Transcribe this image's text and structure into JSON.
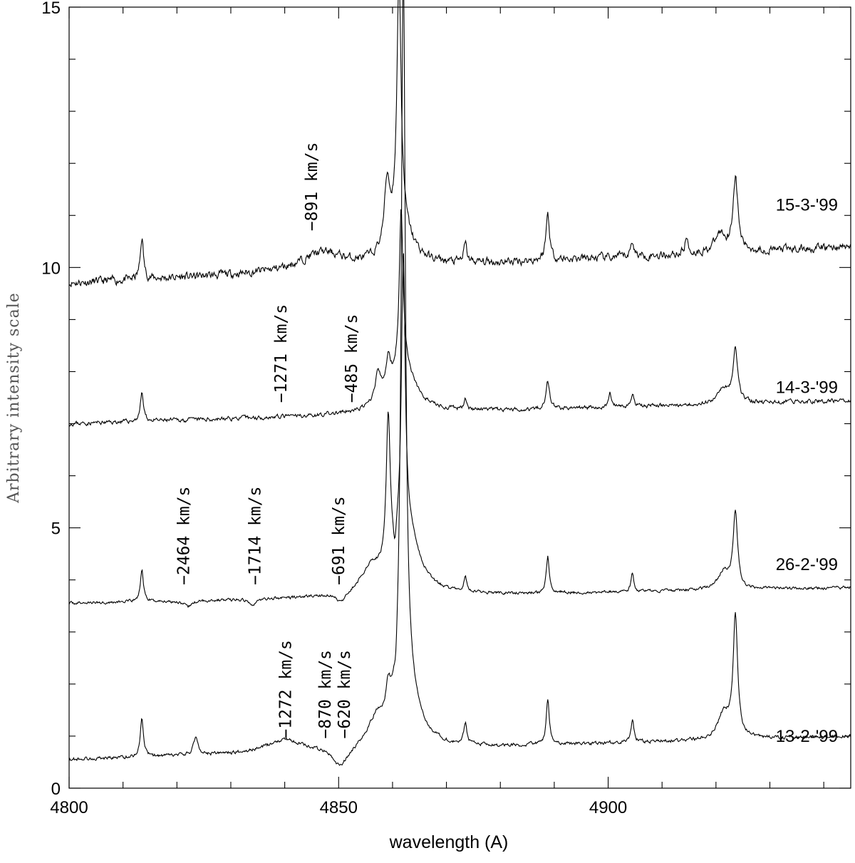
{
  "chart_data": {
    "type": "line",
    "xlabel": "wavelength (A)",
    "ylabel": "Arbitrary intensity scale",
    "xlim": [
      4800,
      4945
    ],
    "ylim": [
      0,
      15
    ],
    "x_major_ticks": [
      4800,
      4850,
      4900
    ],
    "x_tick_labels": [
      "4800",
      "4850",
      "4900"
    ],
    "y_major_ticks": [
      0,
      5,
      10,
      15
    ],
    "y_tick_labels": [
      "0",
      "5",
      "10",
      "15"
    ],
    "grid": false,
    "series": [
      {
        "name": "15-3-'99",
        "baseline_start": 9.7,
        "baseline_end": 10.4,
        "noise": 0.14,
        "seed": 11,
        "features": [
          {
            "center": 4813.5,
            "width": 0.35,
            "height": 0.8
          },
          {
            "center": 4847.0,
            "width": 5.0,
            "height": 0.35
          },
          {
            "center": 4859.0,
            "width": 0.6,
            "height": 1.2
          },
          {
            "center": 4861.2,
            "width": 0.45,
            "height": 4.8
          },
          {
            "center": 4861.4,
            "width": 2.5,
            "height": 0.8
          },
          {
            "center": 4873.5,
            "width": 0.35,
            "height": 0.35
          },
          {
            "center": 4888.8,
            "width": 0.4,
            "height": 0.9
          },
          {
            "center": 4904.5,
            "width": 0.35,
            "height": 0.3
          },
          {
            "center": 4914.5,
            "width": 0.35,
            "height": 0.3
          },
          {
            "center": 4923.6,
            "width": 0.55,
            "height": 1.4
          },
          {
            "center": 4920.8,
            "width": 1.2,
            "height": 0.35
          }
        ]
      },
      {
        "name": "14-3-'99",
        "baseline_start": 7.0,
        "baseline_end": 7.45,
        "noise": 0.07,
        "seed": 23,
        "features": [
          {
            "center": 4813.5,
            "width": 0.35,
            "height": 0.55
          },
          {
            "center": 4857.3,
            "width": 0.7,
            "height": 0.55
          },
          {
            "center": 4859.2,
            "width": 0.5,
            "height": 0.6
          },
          {
            "center": 4861.6,
            "width": 0.4,
            "height": 3.0
          },
          {
            "center": 4861.9,
            "width": 2.6,
            "height": 0.95
          },
          {
            "center": 4873.5,
            "width": 0.3,
            "height": 0.25
          },
          {
            "center": 4888.8,
            "width": 0.4,
            "height": 0.55
          },
          {
            "center": 4900.3,
            "width": 0.25,
            "height": 0.3
          },
          {
            "center": 4904.5,
            "width": 0.3,
            "height": 0.25
          },
          {
            "center": 4923.6,
            "width": 0.5,
            "height": 1.05
          },
          {
            "center": 4921.5,
            "width": 1.3,
            "height": 0.3
          }
        ]
      },
      {
        "name": "26-2-'99",
        "baseline_start": 3.55,
        "baseline_end": 3.85,
        "noise": 0.05,
        "seed": 37,
        "features": [
          {
            "center": 4813.5,
            "width": 0.35,
            "height": 0.6
          },
          {
            "center": 4822.0,
            "width": 0.9,
            "height": -0.12
          },
          {
            "center": 4834.0,
            "width": 0.9,
            "height": -0.1
          },
          {
            "center": 4850.5,
            "width": 1.0,
            "height": -0.22
          },
          {
            "center": 4856.0,
            "width": 2.2,
            "height": 0.45
          },
          {
            "center": 4859.2,
            "width": 0.45,
            "height": 2.85
          },
          {
            "center": 4860.4,
            "width": 0.3,
            "height": -0.45
          },
          {
            "center": 4862.0,
            "width": 0.4,
            "height": 5.2
          },
          {
            "center": 4862.5,
            "width": 2.6,
            "height": 1.35
          },
          {
            "center": 4873.5,
            "width": 0.3,
            "height": 0.3
          },
          {
            "center": 4888.8,
            "width": 0.35,
            "height": 0.7
          },
          {
            "center": 4904.5,
            "width": 0.3,
            "height": 0.35
          },
          {
            "center": 4923.6,
            "width": 0.5,
            "height": 1.45
          },
          {
            "center": 4921.5,
            "width": 1.3,
            "height": 0.35
          }
        ]
      },
      {
        "name": "13-2-'99",
        "baseline_start": 0.55,
        "baseline_end": 1.0,
        "noise": 0.06,
        "seed": 53,
        "features": [
          {
            "center": 4813.5,
            "width": 0.35,
            "height": 0.75
          },
          {
            "center": 4823.5,
            "width": 0.5,
            "height": 0.35
          },
          {
            "center": 4840.0,
            "width": 4.0,
            "height": 0.25
          },
          {
            "center": 4850.3,
            "width": 1.8,
            "height": -0.4
          },
          {
            "center": 4857.0,
            "width": 1.8,
            "height": 0.45
          },
          {
            "center": 4859.2,
            "width": 0.5,
            "height": 0.55
          },
          {
            "center": 4860.6,
            "width": 0.25,
            "height": -0.3
          },
          {
            "center": 4862.0,
            "width": 0.45,
            "height": 14.1
          },
          {
            "center": 4862.6,
            "width": 2.6,
            "height": 1.1
          },
          {
            "center": 4873.5,
            "width": 0.35,
            "height": 0.4
          },
          {
            "center": 4888.8,
            "width": 0.35,
            "height": 0.85
          },
          {
            "center": 4904.5,
            "width": 0.3,
            "height": 0.45
          },
          {
            "center": 4923.6,
            "width": 0.5,
            "height": 2.3
          },
          {
            "center": 4921.5,
            "width": 1.3,
            "height": 0.5
          }
        ]
      }
    ],
    "series_labels": [
      {
        "text": "15-3-'99",
        "y": 11.2
      },
      {
        "text": "14-3-'99",
        "y": 7.7
      },
      {
        "text": "26-2-'99",
        "y": 4.3
      },
      {
        "text": "13-2-'99",
        "y": 1.0
      }
    ],
    "annotations": [
      {
        "text": "−891 km/s",
        "x": 4846.0,
        "y": 10.7
      },
      {
        "text": "−1271 km/s",
        "x": 4840.3,
        "y": 7.4
      },
      {
        "text": "−485 km/s",
        "x": 4853.4,
        "y": 7.4
      },
      {
        "text": "−2464 km/s",
        "x": 4822.3,
        "y": 3.9
      },
      {
        "text": "−1714 km/s",
        "x": 4835.5,
        "y": 3.9
      },
      {
        "text": "−691 km/s",
        "x": 4851.0,
        "y": 3.9
      },
      {
        "text": "−1272 km/s",
        "x": 4841.2,
        "y": 0.95
      },
      {
        "text": "−870 km/s",
        "x": 4848.5,
        "y": 0.95
      },
      {
        "text": "−620 km/s",
        "x": 4852.1,
        "y": 0.95
      }
    ]
  }
}
